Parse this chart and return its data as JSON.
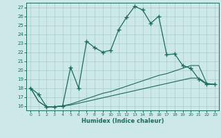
{
  "xlabel": "Humidex (Indice chaleur)",
  "bg_color": "#cce8e8",
  "line_color": "#1a6b5a",
  "grid_color": "#aacccc",
  "x_ticks": [
    0,
    1,
    2,
    3,
    4,
    5,
    6,
    7,
    8,
    9,
    10,
    11,
    12,
    13,
    14,
    15,
    16,
    17,
    18,
    19,
    20,
    21,
    22,
    23
  ],
  "y_ticks": [
    16,
    17,
    18,
    19,
    20,
    21,
    22,
    23,
    24,
    25,
    26,
    27
  ],
  "ylim": [
    15.5,
    27.5
  ],
  "xlim": [
    -0.5,
    23.5
  ],
  "main_line": [
    18.0,
    17.3,
    15.9,
    15.9,
    16.0,
    20.3,
    18.0,
    23.2,
    22.5,
    22.0,
    22.2,
    24.5,
    25.9,
    27.1,
    26.7,
    25.2,
    26.0,
    21.7,
    21.8,
    20.5,
    20.2,
    19.0,
    18.4,
    18.4
  ],
  "line2": [
    18.0,
    16.5,
    15.9,
    15.9,
    16.0,
    16.2,
    16.5,
    16.8,
    17.1,
    17.4,
    17.6,
    17.9,
    18.2,
    18.5,
    18.8,
    19.1,
    19.4,
    19.6,
    19.9,
    20.2,
    20.5,
    20.5,
    18.5,
    18.4
  ],
  "line3": [
    18.0,
    16.5,
    15.9,
    15.9,
    16.0,
    16.1,
    16.3,
    16.5,
    16.7,
    16.9,
    17.1,
    17.3,
    17.5,
    17.7,
    17.9,
    18.1,
    18.3,
    18.5,
    18.7,
    18.9,
    19.1,
    19.1,
    18.5,
    18.4
  ]
}
